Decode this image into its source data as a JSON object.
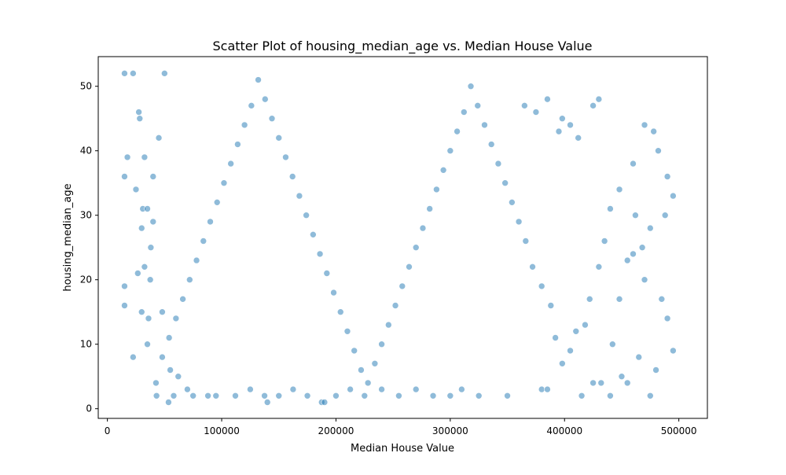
{
  "chart_data": {
    "type": "scatter",
    "title": "Scatter Plot of housing_median_age vs. Median House Value",
    "xlabel": "Median House Value",
    "ylabel": "housing_median_age",
    "xlim": [
      -8000,
      525000
    ],
    "ylim": [
      -1.5,
      54.6
    ],
    "xticks": [
      0,
      100000,
      200000,
      300000,
      400000,
      500000
    ],
    "yticks": [
      0,
      10,
      20,
      30,
      40,
      50
    ],
    "grid": false,
    "legend": "none",
    "point_color": "#1f77b4",
    "point_alpha": 0.5,
    "point_edge_color": "#ffffff",
    "series": [
      {
        "points": [
          [
            14999,
            52
          ],
          [
            15000,
            36
          ],
          [
            15000,
            19
          ],
          [
            15000,
            16
          ],
          [
            17500,
            39
          ],
          [
            22500,
            52
          ],
          [
            22500,
            8
          ],
          [
            25000,
            34
          ],
          [
            26600,
            21
          ],
          [
            27500,
            46
          ],
          [
            28300,
            45
          ],
          [
            30000,
            28
          ],
          [
            30000,
            15
          ],
          [
            31000,
            31
          ],
          [
            32500,
            39
          ],
          [
            32500,
            22
          ],
          [
            35000,
            10
          ],
          [
            35000,
            31
          ],
          [
            36000,
            14
          ],
          [
            37500,
            20
          ],
          [
            38000,
            25
          ],
          [
            40000,
            36
          ],
          [
            40000,
            29
          ],
          [
            42500,
            4
          ],
          [
            43000,
            2
          ],
          [
            45000,
            42
          ],
          [
            48000,
            8
          ],
          [
            50000,
            52
          ],
          [
            53500,
            1
          ],
          [
            55000,
            6
          ],
          [
            58000,
            2
          ],
          [
            62000,
            5
          ],
          [
            70000,
            3
          ],
          [
            75000,
            2
          ],
          [
            88000,
            2
          ],
          [
            95000,
            2
          ],
          [
            112000,
            2
          ],
          [
            125000,
            3
          ],
          [
            137500,
            2
          ],
          [
            140000,
            1
          ],
          [
            150000,
            2
          ],
          [
            162500,
            3
          ],
          [
            175000,
            2
          ],
          [
            187500,
            1
          ],
          [
            190000,
            1
          ],
          [
            200000,
            2
          ],
          [
            212500,
            3
          ],
          [
            225000,
            2
          ],
          [
            240000,
            3
          ],
          [
            255000,
            2
          ],
          [
            270000,
            3
          ],
          [
            285000,
            2
          ],
          [
            300000,
            2
          ],
          [
            310000,
            3
          ],
          [
            325000,
            2
          ],
          [
            350000,
            2
          ],
          [
            380000,
            3
          ],
          [
            385000,
            3
          ],
          [
            415000,
            2
          ],
          [
            425000,
            4
          ],
          [
            432000,
            4
          ],
          [
            440000,
            2
          ],
          [
            450000,
            5
          ],
          [
            455000,
            4
          ],
          [
            475000,
            2
          ],
          [
            480000,
            6
          ],
          [
            485000,
            17
          ],
          [
            490000,
            14
          ],
          [
            495000,
            9
          ],
          [
            470000,
            20
          ],
          [
            465000,
            8
          ],
          [
            460000,
            24
          ],
          [
            448000,
            17
          ],
          [
            442000,
            10
          ],
          [
            430000,
            48
          ],
          [
            425000,
            47
          ],
          [
            412000,
            42
          ],
          [
            405000,
            44
          ],
          [
            398000,
            45
          ],
          [
            395000,
            43
          ],
          [
            385000,
            48
          ],
          [
            375000,
            46
          ],
          [
            365000,
            47
          ],
          [
            460000,
            38
          ],
          [
            470000,
            44
          ],
          [
            478000,
            43
          ],
          [
            482000,
            40
          ],
          [
            490000,
            36
          ],
          [
            495000,
            33
          ],
          [
            488000,
            30
          ],
          [
            475000,
            28
          ],
          [
            468000,
            25
          ],
          [
            462000,
            30
          ],
          [
            455000,
            23
          ],
          [
            448000,
            34
          ],
          [
            440000,
            31
          ],
          [
            435000,
            26
          ],
          [
            430000,
            22
          ],
          [
            422000,
            17
          ],
          [
            418000,
            13
          ],
          [
            410000,
            12
          ],
          [
            405000,
            9
          ],
          [
            398000,
            7
          ],
          [
            392000,
            11
          ],
          [
            388000,
            16
          ],
          [
            380000,
            19
          ],
          [
            372000,
            22
          ],
          [
            366000,
            26
          ],
          [
            360000,
            29
          ],
          [
            354000,
            32
          ],
          [
            348000,
            35
          ],
          [
            342000,
            38
          ],
          [
            336000,
            41
          ],
          [
            330000,
            44
          ],
          [
            324000,
            47
          ],
          [
            318000,
            50
          ],
          [
            312000,
            46
          ],
          [
            306000,
            43
          ],
          [
            300000,
            40
          ],
          [
            294000,
            37
          ],
          [
            288000,
            34
          ],
          [
            282000,
            31
          ],
          [
            276000,
            28
          ],
          [
            270000,
            25
          ],
          [
            264000,
            22
          ],
          [
            258000,
            19
          ],
          [
            252000,
            16
          ],
          [
            246000,
            13
          ],
          [
            240000,
            10
          ],
          [
            234000,
            7
          ],
          [
            228000,
            4
          ],
          [
            222000,
            6
          ],
          [
            216000,
            9
          ],
          [
            210000,
            12
          ],
          [
            204000,
            15
          ],
          [
            198000,
            18
          ],
          [
            192000,
            21
          ],
          [
            186000,
            24
          ],
          [
            180000,
            27
          ],
          [
            174000,
            30
          ],
          [
            168000,
            33
          ],
          [
            162000,
            36
          ],
          [
            156000,
            39
          ],
          [
            150000,
            42
          ],
          [
            144000,
            45
          ],
          [
            138000,
            48
          ],
          [
            132000,
            51
          ],
          [
            126000,
            47
          ],
          [
            120000,
            44
          ],
          [
            114000,
            41
          ],
          [
            108000,
            38
          ],
          [
            102000,
            35
          ],
          [
            96000,
            32
          ],
          [
            90000,
            29
          ],
          [
            84000,
            26
          ],
          [
            78000,
            23
          ],
          [
            72000,
            20
          ],
          [
            66000,
            17
          ],
          [
            60000,
            14
          ],
          [
            54000,
            11
          ],
          [
            48000,
            15
          ]
        ]
      }
    ]
  }
}
